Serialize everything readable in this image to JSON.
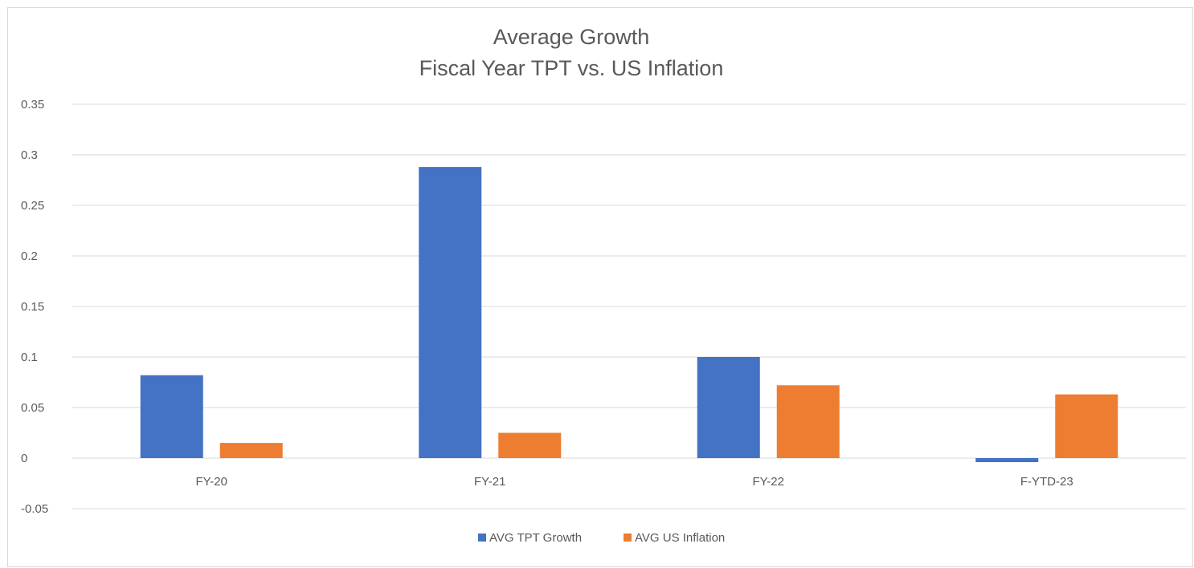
{
  "chart_data": {
    "type": "bar",
    "title": "Average Growth",
    "subtitle": "Fiscal Year TPT vs. US Inflation",
    "xlabel": "",
    "ylabel": "",
    "categories": [
      "FY-20",
      "FY-21",
      "FY-22",
      "F-YTD-23"
    ],
    "series": [
      {
        "name": "AVG TPT Growth",
        "color": "#4472C4",
        "values": [
          0.082,
          0.288,
          0.1,
          -0.004
        ]
      },
      {
        "name": "AVG US Inflation",
        "color": "#ED7D31",
        "values": [
          0.015,
          0.025,
          0.072,
          0.063
        ]
      }
    ],
    "ylim": [
      -0.05,
      0.35
    ],
    "yticks": [
      {
        "value": 0.35,
        "label": "0.35"
      },
      {
        "value": 0.3,
        "label": "0.3"
      },
      {
        "value": 0.25,
        "label": "0.25"
      },
      {
        "value": 0.2,
        "label": "0.2"
      },
      {
        "value": 0.15,
        "label": "0.15"
      },
      {
        "value": 0.1,
        "label": "0.1"
      },
      {
        "value": 0.05,
        "label": "0.05"
      },
      {
        "value": 0,
        "label": "0"
      },
      {
        "value": -0.05,
        "label": "-0.05"
      }
    ],
    "grid": true,
    "gridColor": "#d9d9d9",
    "legend": "bottom"
  }
}
